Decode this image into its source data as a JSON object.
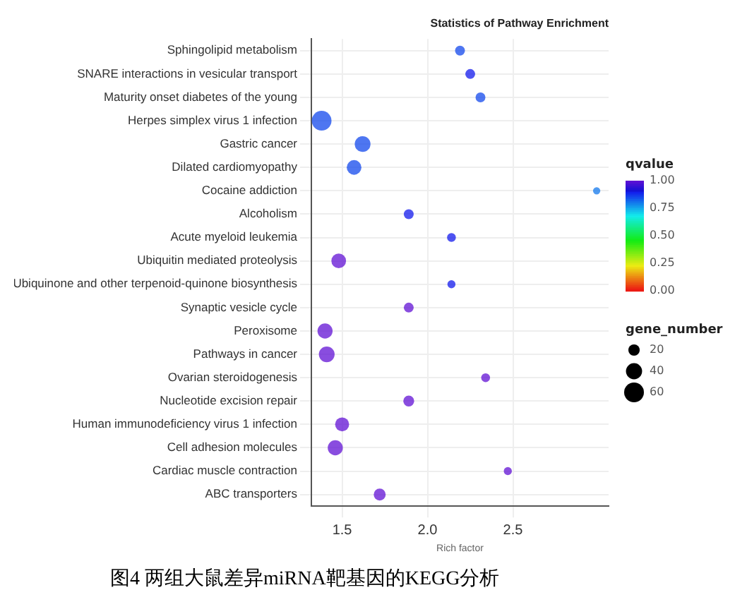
{
  "chart_data": {
    "type": "bubble",
    "orientation": "horizontal",
    "title": "Statistics of Pathway Enrichment",
    "xlabel": "Rich factor",
    "clabel": "qvalue",
    "legend_title": "gene_number",
    "categories": [
      "Sphingolipid metabolism",
      "SNARE interactions in vesicular transport",
      "Maturity onset diabetes of the young",
      "Herpes simplex virus 1 infection",
      "Gastric cancer",
      "Dilated cardiomyopathy",
      "Cocaine addiction",
      "Alcoholism",
      "Acute myeloid leukemia",
      "Ubiquitin mediated proteolysis",
      "Ubiquinone and other terpenoid-quinone biosynthesis",
      "Synaptic vesicle cycle",
      "Peroxisome",
      "Pathways in cancer",
      "Ovarian steroidogenesis",
      "Nucleotide excision repair",
      "Human immunodeficiency virus 1 infection",
      "Cell adhesion molecules",
      "Cardiac muscle contraction",
      "ABC transporters"
    ],
    "values": [
      2.19,
      2.25,
      2.31,
      1.38,
      1.62,
      1.57,
      2.99,
      1.89,
      2.14,
      1.48,
      2.14,
      1.89,
      1.4,
      1.41,
      2.34,
      1.89,
      1.5,
      1.46,
      2.47,
      1.72
    ],
    "sizes": [
      15,
      15,
      15,
      60,
      38,
      33,
      8,
      15,
      12,
      33,
      10,
      15,
      35,
      38,
      12,
      18,
      30,
      35,
      10,
      22
    ],
    "cvalues": [
      0.85,
      0.9,
      0.85,
      0.85,
      0.85,
      0.85,
      0.8,
      0.9,
      0.9,
      1,
      0.9,
      1,
      1,
      1,
      1,
      1,
      1,
      1,
      1,
      1
    ],
    "size_legend": [
      20,
      40,
      60
    ],
    "clim": [
      0,
      1
    ],
    "cticks": [
      {
        "value": 0,
        "label": "0.00"
      },
      {
        "value": 0.25,
        "label": "0.25"
      },
      {
        "value": 0.5,
        "label": "0.50"
      },
      {
        "value": 0.75,
        "label": "0.75"
      },
      {
        "value": 1,
        "label": "1.00"
      }
    ],
    "xlim": [
      1.32,
      3.06
    ],
    "xticks": [
      {
        "value": 1.5,
        "label": "1.5"
      },
      {
        "value": 2,
        "label": "2.0"
      },
      {
        "value": 2.5,
        "label": "2.5"
      }
    ],
    "grid": true,
    "annotations": [
      "图4 两组大鼠差异miRNA靶基因的KEGG分析"
    ]
  }
}
